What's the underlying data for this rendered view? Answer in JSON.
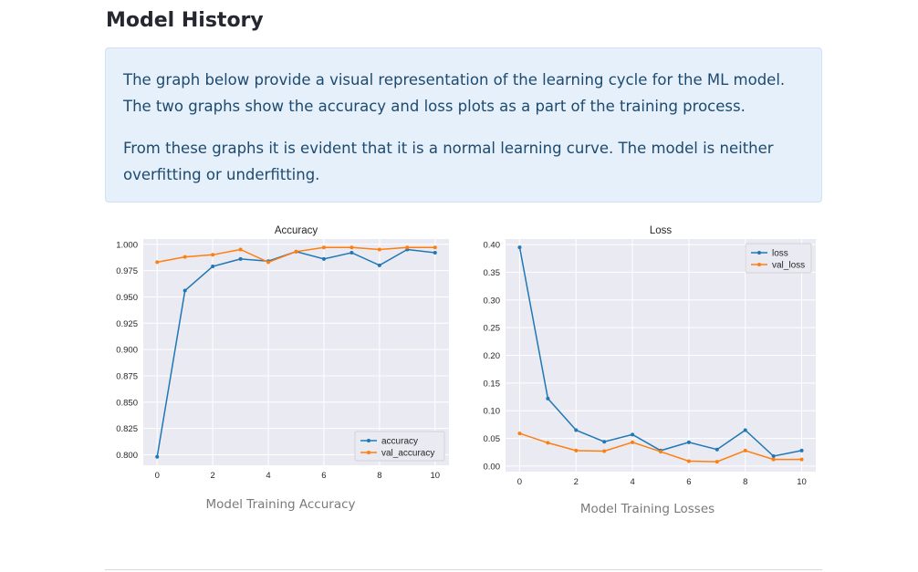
{
  "page": {
    "title": "Model History",
    "info_paragraphs": [
      "The graph below provide a visual representation of the learning cycle for the ML model. The two graphs show the accuracy and loss plots as a part of the training process.",
      "From these graphs it is evident that it is a normal learning curve. The model is neither overfitting or underfitting."
    ],
    "captions": [
      "Model Training Accuracy",
      "Model Training Losses"
    ]
  },
  "colors": {
    "series_blue": "#1f77b4",
    "series_orange": "#ff7f0e",
    "plot_bg": "#eaeaf2",
    "grid": "#ffffff",
    "info_bg": "#e6f0fb"
  },
  "chart_data": [
    {
      "type": "line",
      "title": "Accuracy",
      "xlabel": "",
      "ylabel": "",
      "x": [
        0,
        1,
        2,
        3,
        4,
        5,
        6,
        7,
        8,
        9,
        10
      ],
      "xlim": [
        -0.5,
        10.5
      ],
      "ylim": [
        0.79,
        1.005
      ],
      "xticks": [
        "0",
        "2",
        "4",
        "6",
        "8",
        "10"
      ],
      "yticks": [
        "0.800",
        "0.825",
        "0.850",
        "0.875",
        "0.900",
        "0.925",
        "0.950",
        "0.975",
        "1.000"
      ],
      "grid": true,
      "legend_position": "lower-right",
      "series": [
        {
          "name": "accuracy",
          "values": [
            0.798,
            0.956,
            0.979,
            0.986,
            0.984,
            0.993,
            0.986,
            0.992,
            0.98,
            0.995,
            0.992
          ]
        },
        {
          "name": "val_accuracy",
          "values": [
            0.983,
            0.988,
            0.99,
            0.995,
            0.983,
            0.993,
            0.997,
            0.997,
            0.995,
            0.997,
            0.997
          ]
        }
      ]
    },
    {
      "type": "line",
      "title": "Loss",
      "xlabel": "",
      "ylabel": "",
      "x": [
        0,
        1,
        2,
        3,
        4,
        5,
        6,
        7,
        8,
        9,
        10
      ],
      "xlim": [
        -0.5,
        10.5
      ],
      "ylim": [
        -0.01,
        0.41
      ],
      "xticks": [
        "0",
        "2",
        "4",
        "6",
        "8",
        "10"
      ],
      "yticks": [
        "0.00",
        "0.05",
        "0.10",
        "0.15",
        "0.20",
        "0.25",
        "0.30",
        "0.35",
        "0.40"
      ],
      "grid": true,
      "legend_position": "top-right",
      "series": [
        {
          "name": "loss",
          "values": [
            0.395,
            0.122,
            0.065,
            0.044,
            0.057,
            0.028,
            0.043,
            0.03,
            0.065,
            0.018,
            0.028
          ]
        },
        {
          "name": "val_loss",
          "values": [
            0.059,
            0.042,
            0.028,
            0.027,
            0.043,
            0.026,
            0.009,
            0.008,
            0.028,
            0.012,
            0.012
          ]
        }
      ]
    }
  ]
}
